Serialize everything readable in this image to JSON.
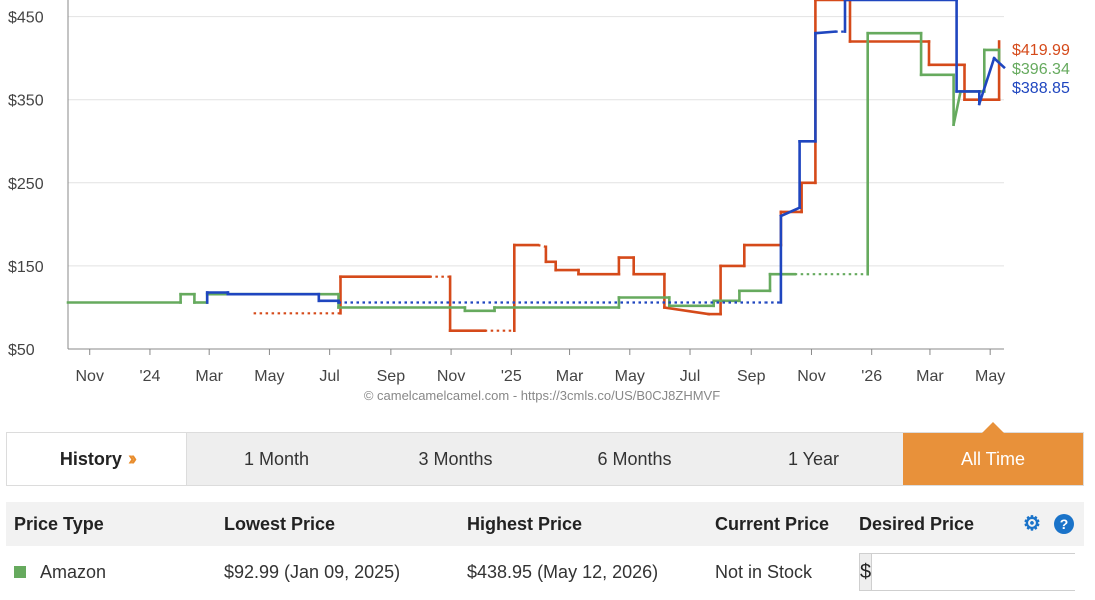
{
  "chart_data": {
    "type": "line",
    "y_ticks": [
      "$450",
      "$350",
      "$250",
      "$150",
      "$50"
    ],
    "y_tick_values": [
      450,
      350,
      250,
      150,
      50
    ],
    "ylim": [
      50,
      470
    ],
    "x_ticks": [
      "Nov",
      "'24",
      "Mar",
      "May",
      "Jul",
      "Sep",
      "Nov",
      "'25",
      "Mar",
      "May",
      "Jul",
      "Sep",
      "Nov",
      "'26",
      "Mar",
      "May"
    ],
    "x_tick_dates": [
      "2023-11",
      "2024-01",
      "2024-03",
      "2024-05",
      "2024-07",
      "2024-09",
      "2024-11",
      "2025-01",
      "2025-03",
      "2025-05",
      "2025-07",
      "2025-09",
      "2025-11",
      "2026-01",
      "2026-03",
      "2026-05"
    ],
    "xlim": [
      "2023-10-10",
      "2026-05-15"
    ],
    "grid": true,
    "credit": "© camelcamelcamel.com - https://3cmls.co/US/B0CJ8ZHMVF",
    "series": [
      {
        "color": "#d54a1a",
        "end_label": "$419.99",
        "points": [
          [
            "2024-04-15",
            93,
            "dotted"
          ],
          [
            "2024-07-12",
            93
          ],
          [
            "2024-07-12",
            137
          ],
          [
            "2024-10-10",
            137,
            "dotted"
          ],
          [
            "2024-10-31",
            137
          ],
          [
            "2024-10-31",
            72
          ],
          [
            "2024-12-05",
            72,
            "dotted"
          ],
          [
            "2025-01-04",
            72
          ],
          [
            "2025-01-04",
            175
          ],
          [
            "2025-01-28",
            175,
            "dotted"
          ],
          [
            "2025-02-05",
            173
          ],
          [
            "2025-02-05",
            155
          ],
          [
            "2025-02-15",
            155
          ],
          [
            "2025-02-15",
            145
          ],
          [
            "2025-03-10",
            145
          ],
          [
            "2025-03-10",
            140
          ],
          [
            "2025-04-20",
            140
          ],
          [
            "2025-04-20",
            160
          ],
          [
            "2025-05-05",
            160
          ],
          [
            "2025-05-05",
            140
          ],
          [
            "2025-06-05",
            140
          ],
          [
            "2025-06-05",
            100
          ],
          [
            "2025-07-20",
            92
          ],
          [
            "2025-08-01",
            92
          ],
          [
            "2025-08-01",
            150
          ],
          [
            "2025-08-25",
            150
          ],
          [
            "2025-08-25",
            175
          ],
          [
            "2025-10-01",
            175
          ],
          [
            "2025-10-01",
            215
          ],
          [
            "2025-10-22",
            215
          ],
          [
            "2025-10-22",
            250
          ],
          [
            "2025-11-05",
            250
          ],
          [
            "2025-11-05",
            470
          ],
          [
            "2025-12-10",
            470
          ],
          [
            "2025-12-10",
            420
          ],
          [
            "2026-02-28",
            420
          ],
          [
            "2026-02-28",
            392
          ],
          [
            "2026-04-05",
            392
          ],
          [
            "2026-04-05",
            350
          ],
          [
            "2026-05-10",
            350
          ],
          [
            "2026-05-10",
            420
          ]
        ]
      },
      {
        "color": "#66aa5e",
        "end_label": "$396.34",
        "points": [
          [
            "2023-10-10",
            106
          ],
          [
            "2024-02-01",
            106
          ],
          [
            "2024-02-01",
            116
          ],
          [
            "2024-02-15",
            116
          ],
          [
            "2024-02-15",
            106
          ],
          [
            "2024-02-28",
            106
          ],
          [
            "2024-02-28",
            116
          ],
          [
            "2024-07-10",
            116
          ],
          [
            "2024-07-10",
            100
          ],
          [
            "2024-11-15",
            100
          ],
          [
            "2024-11-15",
            96
          ],
          [
            "2024-12-15",
            96
          ],
          [
            "2024-12-15",
            100
          ],
          [
            "2025-04-20",
            100
          ],
          [
            "2025-04-20",
            112
          ],
          [
            "2025-06-10",
            112
          ],
          [
            "2025-06-10",
            102
          ],
          [
            "2025-07-25",
            102
          ],
          [
            "2025-07-25",
            108
          ],
          [
            "2025-08-20",
            108
          ],
          [
            "2025-08-20",
            120
          ],
          [
            "2025-09-20",
            120
          ],
          [
            "2025-09-20",
            140
          ],
          [
            "2025-10-15",
            140,
            "dotted"
          ],
          [
            "2025-12-28",
            140
          ],
          [
            "2025-12-28",
            430
          ],
          [
            "2026-02-20",
            430
          ],
          [
            "2026-02-20",
            380
          ],
          [
            "2026-03-25",
            380
          ],
          [
            "2026-03-25",
            320
          ],
          [
            "2026-04-01",
            360
          ],
          [
            "2026-04-25",
            360
          ],
          [
            "2026-04-25",
            410
          ],
          [
            "2026-05-10",
            410
          ],
          [
            "2026-05-10",
            396
          ]
        ]
      },
      {
        "color": "#1f46bf",
        "end_label": "$388.85",
        "points": [
          [
            "2024-02-28",
            106
          ],
          [
            "2024-02-28",
            118
          ],
          [
            "2024-03-20",
            118
          ],
          [
            "2024-03-20",
            116
          ],
          [
            "2024-06-20",
            116
          ],
          [
            "2024-06-20",
            108
          ],
          [
            "2024-07-10",
            108
          ],
          [
            "2024-07-10",
            106,
            "dotted"
          ],
          [
            "2025-09-15",
            106,
            "dotted"
          ],
          [
            "2025-10-01",
            106
          ],
          [
            "2025-10-01",
            210
          ],
          [
            "2025-10-20",
            220
          ],
          [
            "2025-10-20",
            300
          ],
          [
            "2025-11-05",
            300
          ],
          [
            "2025-11-05",
            430
          ],
          [
            "2025-11-25",
            432,
            "dotted"
          ],
          [
            "2025-12-05",
            432
          ],
          [
            "2025-12-05",
            470
          ],
          [
            "2026-03-28",
            470
          ],
          [
            "2026-03-28",
            360
          ],
          [
            "2026-04-20",
            360
          ],
          [
            "2026-04-20",
            345
          ],
          [
            "2026-05-05",
            400
          ],
          [
            "2026-05-15",
            389
          ]
        ]
      }
    ]
  },
  "tabs": {
    "history": "History",
    "one_month": "1 Month",
    "three_months": "3 Months",
    "six_months": "6 Months",
    "one_year": "1 Year",
    "all_time": "All Time",
    "active_color": "#e8913a"
  },
  "table": {
    "headers": {
      "price_type": "Price Type",
      "lowest": "Lowest Price",
      "highest": "Highest Price",
      "current": "Current Price",
      "desired": "Desired Price"
    },
    "row": {
      "type": "Amazon",
      "swatch_color": "#66aa5e",
      "lowest": "$92.99 (Jan 09, 2025)",
      "highest": "$438.95 (May 12, 2026)",
      "current": "Not in Stock",
      "currency": "$",
      "desired_value": ""
    }
  },
  "icons": {
    "settings": "gear-icon",
    "help": "help-icon"
  }
}
